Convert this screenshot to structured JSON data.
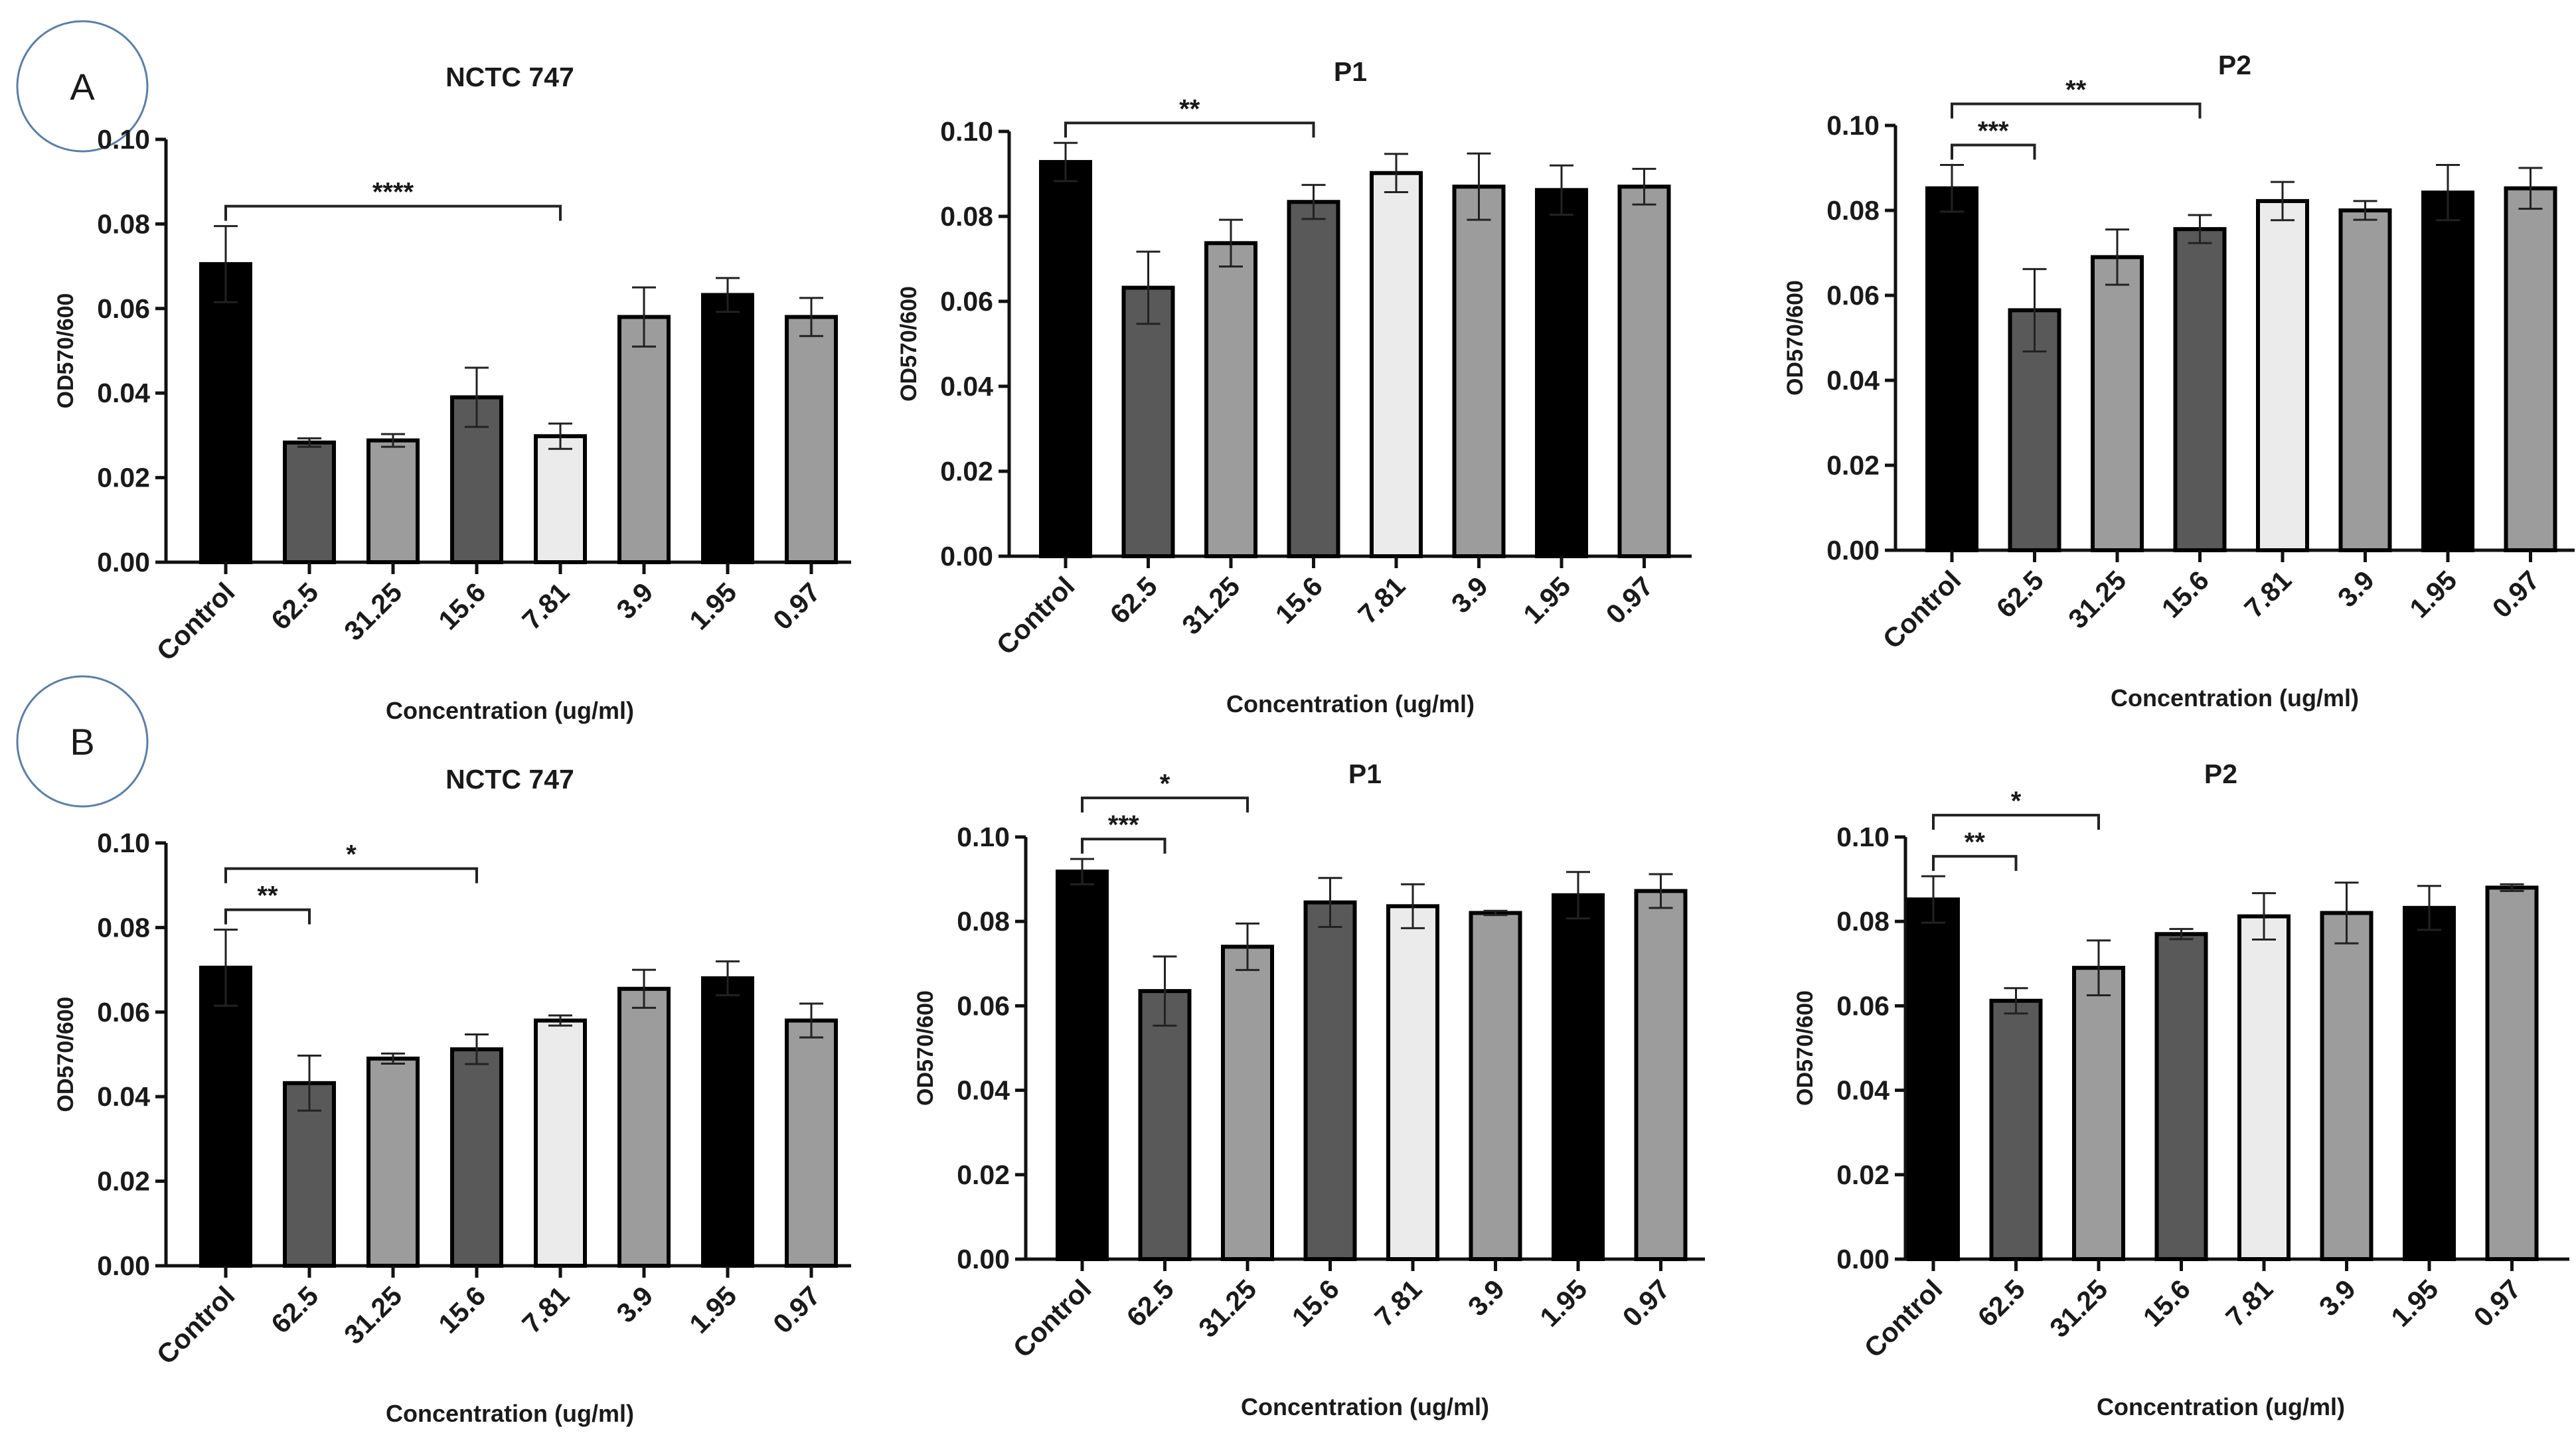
{
  "panel_labels": [
    "A",
    "B"
  ],
  "colors": {
    "black": "#000000",
    "dark_gray": "#595959",
    "mid_gray": "#9c9c9c",
    "light_gray": "#ebebeb",
    "label_circle": "#5b7fa6"
  },
  "chart_data": [
    {
      "type": "bar",
      "panel": "A",
      "title": "NCTC 747",
      "xlabel": "Concentration (ug/ml)",
      "ylabel": "OD570/600",
      "ylim": [
        0,
        0.1
      ],
      "yticks": [
        "0.00",
        "0.02",
        "0.04",
        "0.06",
        "0.08",
        "0.10"
      ],
      "categories": [
        "Control",
        "62.5",
        "31.25",
        "15.6",
        "7.81",
        "3.9",
        "1.95",
        "0.97"
      ],
      "values": [
        0.0705,
        0.0283,
        0.0288,
        0.039,
        0.0298,
        0.058,
        0.0632,
        0.058
      ],
      "errors": [
        0.009,
        0.001,
        0.0015,
        0.007,
        0.003,
        0.007,
        0.004,
        0.0045
      ],
      "bar_colors": [
        "black",
        "dark_gray",
        "mid_gray",
        "dark_gray",
        "light_gray",
        "mid_gray",
        "black",
        "mid_gray"
      ],
      "annotations": [
        {
          "from": "Control",
          "to": "7.81",
          "label": "****"
        }
      ]
    },
    {
      "type": "bar",
      "panel": "A",
      "title": "P1",
      "xlabel": "Concentration (ug/ml)",
      "ylabel": "OD570/600",
      "ylim": [
        0,
        0.1
      ],
      "yticks": [
        "0.00",
        "0.02",
        "0.04",
        "0.06",
        "0.08",
        "0.10"
      ],
      "categories": [
        "Control",
        "62.5",
        "31.25",
        "15.6",
        "7.81",
        "3.9",
        "1.95",
        "0.97"
      ],
      "values": [
        0.0928,
        0.0632,
        0.0737,
        0.0834,
        0.0902,
        0.087,
        0.0862,
        0.087
      ],
      "errors": [
        0.0045,
        0.0085,
        0.0055,
        0.004,
        0.0045,
        0.0078,
        0.0058,
        0.0042
      ],
      "bar_colors": [
        "black",
        "dark_gray",
        "mid_gray",
        "dark_gray",
        "light_gray",
        "mid_gray",
        "black",
        "mid_gray"
      ],
      "annotations": [
        {
          "from": "Control",
          "to": "15.6",
          "label": "**"
        }
      ]
    },
    {
      "type": "bar",
      "panel": "A",
      "title": "P2",
      "xlabel": "Concentration (ug/ml)",
      "ylabel": "OD570/600",
      "ylim": [
        0,
        0.1
      ],
      "yticks": [
        "0.00",
        "0.02",
        "0.04",
        "0.06",
        "0.08",
        "0.10"
      ],
      "categories": [
        "Control",
        "62.5",
        "31.25",
        "15.6",
        "7.81",
        "3.9",
        "1.95",
        "0.97"
      ],
      "values": [
        0.0852,
        0.0565,
        0.069,
        0.0756,
        0.0822,
        0.08,
        0.0842,
        0.0852
      ],
      "errors": [
        0.0055,
        0.0097,
        0.0065,
        0.0033,
        0.0045,
        0.0022,
        0.0065,
        0.0048
      ],
      "bar_colors": [
        "black",
        "dark_gray",
        "mid_gray",
        "dark_gray",
        "light_gray",
        "mid_gray",
        "black",
        "mid_gray"
      ],
      "annotations": [
        {
          "from": "Control",
          "to": "62.5",
          "label": "***"
        },
        {
          "from": "Control",
          "to": "15.6",
          "label": "**"
        }
      ]
    },
    {
      "type": "bar",
      "panel": "B",
      "title": "NCTC 747",
      "xlabel": "Concentration (ug/ml)",
      "ylabel": "OD570/600",
      "ylim": [
        0,
        0.1
      ],
      "yticks": [
        "0.00",
        "0.02",
        "0.04",
        "0.06",
        "0.08",
        "0.10"
      ],
      "categories": [
        "Control",
        "62.5",
        "31.25",
        "15.6",
        "7.81",
        "3.9",
        "1.95",
        "0.97"
      ],
      "values": [
        0.0705,
        0.0432,
        0.049,
        0.0512,
        0.058,
        0.0655,
        0.068,
        0.058
      ],
      "errors": [
        0.009,
        0.0065,
        0.0012,
        0.0035,
        0.0012,
        0.0045,
        0.004,
        0.004
      ],
      "bar_colors": [
        "black",
        "dark_gray",
        "mid_gray",
        "dark_gray",
        "light_gray",
        "mid_gray",
        "black",
        "mid_gray"
      ],
      "annotations": [
        {
          "from": "Control",
          "to": "62.5",
          "label": "**"
        },
        {
          "from": "Control",
          "to": "15.6",
          "label": "*"
        }
      ]
    },
    {
      "type": "bar",
      "panel": "B",
      "title": "P1",
      "xlabel": "Concentration (ug/ml)",
      "ylabel": "OD570/600",
      "ylim": [
        0,
        0.1
      ],
      "yticks": [
        "0.00",
        "0.02",
        "0.04",
        "0.06",
        "0.08",
        "0.10"
      ],
      "categories": [
        "Control",
        "62.5",
        "31.25",
        "15.6",
        "7.81",
        "3.9",
        "1.95",
        "0.97"
      ],
      "values": [
        0.0918,
        0.0635,
        0.074,
        0.0845,
        0.0836,
        0.082,
        0.0862,
        0.0872
      ],
      "errors": [
        0.003,
        0.0082,
        0.0055,
        0.0058,
        0.0052,
        0.0005,
        0.0055,
        0.004
      ],
      "bar_colors": [
        "black",
        "dark_gray",
        "mid_gray",
        "dark_gray",
        "light_gray",
        "mid_gray",
        "black",
        "mid_gray"
      ],
      "annotations": [
        {
          "from": "Control",
          "to": "62.5",
          "label": "***"
        },
        {
          "from": "Control",
          "to": "31.25",
          "label": "*"
        }
      ]
    },
    {
      "type": "bar",
      "panel": "B",
      "title": "P2",
      "xlabel": "Concentration (ug/ml)",
      "ylabel": "OD570/600",
      "ylim": [
        0,
        0.1
      ],
      "yticks": [
        "0.00",
        "0.02",
        "0.04",
        "0.06",
        "0.08",
        "0.10"
      ],
      "categories": [
        "Control",
        "62.5",
        "31.25",
        "15.6",
        "7.81",
        "3.9",
        "1.95",
        "0.97"
      ],
      "values": [
        0.0852,
        0.0612,
        0.069,
        0.077,
        0.0812,
        0.082,
        0.0832,
        0.088
      ],
      "errors": [
        0.0055,
        0.003,
        0.0065,
        0.0012,
        0.0055,
        0.0072,
        0.0052,
        0.0008
      ],
      "bar_colors": [
        "black",
        "dark_gray",
        "mid_gray",
        "dark_gray",
        "light_gray",
        "mid_gray",
        "black",
        "mid_gray"
      ],
      "annotations": [
        {
          "from": "Control",
          "to": "62.5",
          "label": "**"
        },
        {
          "from": "Control",
          "to": "31.25",
          "label": "*"
        }
      ]
    }
  ]
}
